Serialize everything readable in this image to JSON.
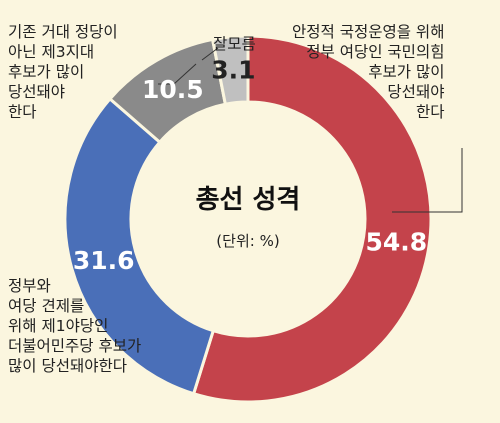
{
  "chart_data": {
    "type": "pie",
    "title": "총선 성격",
    "subtitle": "(단위: %)",
    "categories": [
      "안정적 국정운영을 위해\n정부 여당인 국민의힘\n후보가 많이\n당선돼야\n한다",
      "정부와\n여당 견제를\n위해 제1야당인\n더불어민주당 후보가\n많이 당선돼야한다",
      "기존 거대 정당이\n아닌 제3지대\n후보가 많이\n당선돼야\n한다",
      "잘모름"
    ],
    "values": [
      54.8,
      31.6,
      10.5,
      3.1
    ],
    "value_labels": [
      "54.8",
      "31.6",
      "10.5",
      "3.1"
    ],
    "colors": [
      "#c4434b",
      "#4a6fb8",
      "#8a8a8a",
      "#c0c0c0"
    ],
    "legend": "none"
  }
}
